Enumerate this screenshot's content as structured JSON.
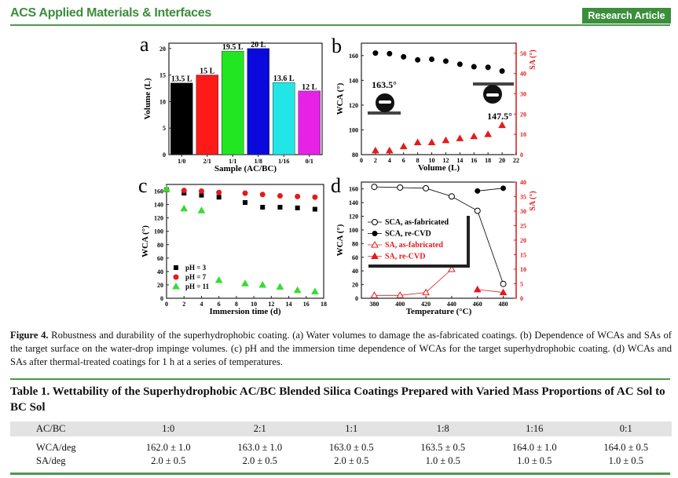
{
  "header": {
    "journal": "ACS Applied Materials & Interfaces",
    "badge": "Research Article"
  },
  "colors": {
    "accent": "#3b8e3b",
    "red": "#e41a1c"
  },
  "chart_data": [
    {
      "type": "bar",
      "panel": "a",
      "categories": [
        "1/0",
        "2/1",
        "1/1",
        "1/8",
        "1/16",
        "0/1"
      ],
      "values": [
        13.5,
        15,
        19.5,
        20,
        13.6,
        12
      ],
      "data_labels": [
        "13.5 L",
        "15 L",
        "19.5 L",
        "20 L",
        "13.6 L",
        "12 L"
      ],
      "colors": [
        "#000000",
        "#ff1a1a",
        "#22e622",
        "#0a0adc",
        "#22e6e6",
        "#e622e6"
      ],
      "xlabel": "Sample (AC/BC)",
      "ylabel": "Volume (L)",
      "ylim": [
        0,
        21
      ],
      "yticks": [
        0,
        5,
        10,
        15,
        20
      ]
    },
    {
      "type": "scatter",
      "panel": "b",
      "xlabel": "Volume (L)",
      "ylabel": "WCA (°)",
      "y2label": "SA (°)",
      "xlim": [
        0,
        22
      ],
      "xticks": [
        0,
        2,
        4,
        6,
        8,
        10,
        12,
        14,
        16,
        18,
        20,
        22
      ],
      "ylim": [
        80,
        170
      ],
      "yticks": [
        80,
        100,
        120,
        140,
        160
      ],
      "y2lim": [
        0,
        55
      ],
      "y2ticks": [
        0,
        10,
        20,
        30,
        40,
        50
      ],
      "series": [
        {
          "axis": "left",
          "marker": "circle",
          "color": "#000000",
          "x": [
            2,
            4,
            6,
            8,
            10,
            12,
            14,
            16,
            18,
            20
          ],
          "y": [
            162,
            161.5,
            159,
            156.5,
            157,
            155.5,
            153,
            151,
            150.5,
            147.5
          ]
        },
        {
          "axis": "right",
          "marker": "triangle",
          "color": "#e41a1c",
          "x": [
            2,
            4,
            6,
            8,
            10,
            12,
            14,
            16,
            18,
            20
          ],
          "y": [
            2,
            2,
            4,
            6,
            6,
            7,
            8,
            9,
            10,
            14.5
          ]
        }
      ],
      "annotations": [
        "163.5°",
        "147.5°"
      ]
    },
    {
      "type": "scatter",
      "panel": "c",
      "xlabel": "Immersion time (d)",
      "ylabel": "WCA (°)",
      "xlim": [
        0,
        18
      ],
      "xticks": [
        0,
        2,
        4,
        6,
        8,
        10,
        12,
        14,
        16,
        18
      ],
      "ylim": [
        0,
        170
      ],
      "yticks": [
        0,
        20,
        40,
        60,
        80,
        100,
        120,
        140,
        160
      ],
      "legend": "bottom-left",
      "series": [
        {
          "name": "pH = 3",
          "marker": "square",
          "color": "#000000",
          "x": [
            0,
            2,
            4,
            6,
            9,
            11,
            13,
            15,
            17
          ],
          "y": [
            162,
            157,
            154,
            151,
            143,
            136,
            136,
            135,
            133
          ]
        },
        {
          "name": "pH = 7",
          "marker": "circle",
          "color": "#e41a1c",
          "x": [
            0,
            2,
            4,
            6,
            9,
            11,
            13,
            15,
            17
          ],
          "y": [
            162,
            161,
            160,
            158,
            157,
            155,
            153,
            152,
            151
          ]
        },
        {
          "name": "pH = 11",
          "marker": "triangle",
          "color": "#33dd33",
          "x": [
            0,
            2,
            4,
            6,
            9,
            11,
            13,
            15,
            17
          ],
          "y": [
            163,
            134,
            131,
            27,
            22,
            20,
            17,
            12,
            10
          ]
        }
      ]
    },
    {
      "type": "line",
      "panel": "d",
      "xlabel": "Temperature (°C)",
      "ylabel": "WCA (°)",
      "y2label": "SA (°)",
      "xlim": [
        370,
        490
      ],
      "xticks": [
        380,
        400,
        420,
        440,
        460,
        480
      ],
      "ylim": [
        0,
        170
      ],
      "yticks": [
        0,
        20,
        40,
        60,
        80,
        100,
        120,
        140,
        160
      ],
      "y2lim": [
        0,
        40
      ],
      "y2ticks": [
        0,
        5,
        10,
        15,
        20,
        25,
        30,
        35,
        40
      ],
      "legend": "center-left",
      "series": [
        {
          "name": "SCA, as-fabricated",
          "axis": "left",
          "marker": "circle-open",
          "color": "#000000",
          "x": [
            380,
            400,
            420,
            440,
            460,
            480
          ],
          "y": [
            163,
            162,
            161,
            149,
            128,
            21
          ]
        },
        {
          "name": "SCA, re-CVD",
          "axis": "left",
          "marker": "circle",
          "color": "#000000",
          "x": [
            460,
            480
          ],
          "y": [
            157,
            161
          ]
        },
        {
          "name": "SA, as-fabricated",
          "axis": "right",
          "marker": "triangle-open",
          "color": "#e41a1c",
          "x": [
            380,
            400,
            420,
            440
          ],
          "y": [
            1,
            1,
            2,
            10
          ]
        },
        {
          "name": "SA, re-CVD",
          "axis": "right",
          "marker": "triangle",
          "color": "#e41a1c",
          "x": [
            460,
            480
          ],
          "y": [
            3,
            2
          ]
        }
      ]
    }
  ],
  "caption": {
    "label": "Figure 4.",
    "text": " Robustness and durability of the superhydrophobic coating. (a) Water volumes to damage the as-fabricated coatings. (b) Dependence of WCAs and SAs of the target surface on the water-drop impinge volumes. (c) pH and the immersion time dependence of WCAs for the target superhydrophobic coating. (d) WCAs and SAs after thermal-treated coatings for 1 h at a series of temperatures."
  },
  "table": {
    "title": "Table 1. Wettability of the Superhydrophobic AC/BC Blended Silica Coatings Prepared with Varied Mass Proportions of AC Sol to BC Sol",
    "headers": [
      "AC/BC",
      "1:0",
      "2:1",
      "1:1",
      "1:8",
      "1:16",
      "0:1"
    ],
    "rows": [
      [
        "WCA/deg",
        "162.0 ± 1.0",
        "163.0 ± 1.0",
        "163.0 ± 0.5",
        "163.5 ± 0.5",
        "164.0 ± 1.0",
        "164.0 ± 0.5"
      ],
      [
        "SA/deg",
        "2.0 ± 0.5",
        "2.0 ± 0.5",
        "2.0 ± 0.5",
        "1.0 ± 0.5",
        "1.0 ± 0.5",
        "1.0 ± 0.5"
      ]
    ]
  }
}
